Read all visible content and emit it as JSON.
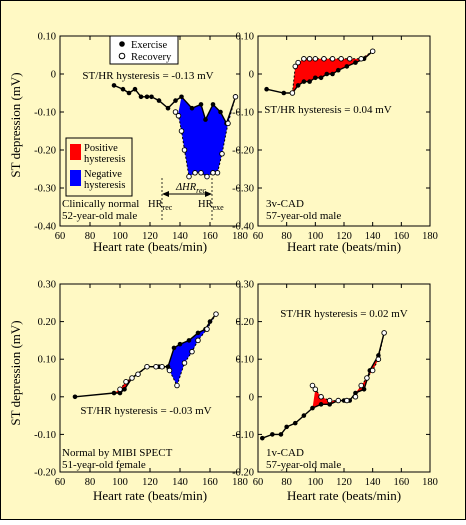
{
  "colors": {
    "background": "#fff9c4",
    "frame": "#000000",
    "positive_fill": "#ff0000",
    "negative_fill": "#0000ff"
  },
  "legend": {
    "exercise_label": "Exercise",
    "recovery_label": "Recovery",
    "positive_label_1": "Positive",
    "positive_label_2": "hysteresis",
    "negative_label_1": "Negative",
    "negative_label_2": "hysteresis"
  },
  "hr_annotation": {
    "hr_rec": "HR",
    "hr_rec_sub": "rec",
    "hr_exe": "HR",
    "hr_exe_sub": "exe",
    "delta_hr": "HR",
    "delta_hr_sub": "rec"
  },
  "chart_data": [
    {
      "type": "line",
      "panel": "top-left",
      "hysteresis_label": "ST/HR hysteresis = -0.13 mV",
      "subject_line1": "Clinically normal",
      "subject_line2": "52-year-old male",
      "xlabel": "Heart rate (beats/min)",
      "ylabel": "ST depression (mV)",
      "xlim": [
        60,
        180
      ],
      "ylim": [
        -0.4,
        0.1
      ],
      "xticks": [
        60,
        80,
        100,
        120,
        140,
        160,
        180
      ],
      "yticks": [
        -0.4,
        -0.3,
        -0.2,
        -0.1,
        0,
        0.1
      ],
      "ytick_labels": [
        "-0.40",
        "-0.30",
        "-0.20",
        "-0.10",
        "0",
        "0.10"
      ],
      "exercise": {
        "x": [
          96,
          102,
          106,
          110,
          114,
          118,
          121,
          126,
          132,
          137,
          141,
          148,
          154,
          157,
          162,
          167,
          171,
          177
        ],
        "y": [
          -0.03,
          -0.04,
          -0.05,
          -0.04,
          -0.06,
          -0.06,
          -0.06,
          -0.07,
          -0.09,
          -0.07,
          -0.06,
          -0.09,
          -0.08,
          -0.12,
          -0.08,
          -0.1,
          -0.13,
          -0.06
        ]
      },
      "recovery": {
        "x": [
          177,
          172,
          168,
          165,
          162,
          158,
          154,
          150,
          146,
          143,
          141,
          139,
          137
        ],
        "y": [
          -0.06,
          -0.13,
          -0.21,
          -0.26,
          -0.26,
          -0.27,
          -0.26,
          -0.26,
          -0.27,
          -0.2,
          -0.15,
          -0.11,
          -0.1
        ]
      },
      "fills": [
        {
          "kind": "negative",
          "x": [
            139,
            141,
            148,
            154,
            157,
            162,
            167,
            171,
            177,
            172,
            168,
            165,
            162,
            158,
            154,
            150,
            146,
            143,
            141,
            139
          ],
          "y": [
            -0.1,
            -0.06,
            -0.09,
            -0.08,
            -0.12,
            -0.08,
            -0.1,
            -0.13,
            -0.06,
            -0.13,
            -0.21,
            -0.26,
            -0.26,
            -0.27,
            -0.26,
            -0.26,
            -0.27,
            -0.2,
            -0.15,
            -0.11
          ]
        }
      ],
      "hr_markers": {
        "hr_rec": 139,
        "hr_exe": 176
      }
    },
    {
      "type": "line",
      "panel": "top-right",
      "hysteresis_label": "ST/HR hysteresis = 0.04 mV",
      "subject_line1": "3v-CAD",
      "subject_line2": "57-year-old male",
      "xlabel": "Heart rate (beats/min)",
      "ylabel": "",
      "xlim": [
        60,
        180
      ],
      "ylim": [
        -0.4,
        0.1
      ],
      "xticks": [
        60,
        80,
        100,
        120,
        140,
        160,
        180
      ],
      "yticks": [
        -0.4,
        -0.3,
        -0.2,
        -0.1,
        0,
        0.1
      ],
      "ytick_labels": [
        "-0.40",
        "-0.30",
        "-0.20",
        "-0.10",
        "0",
        "0.10"
      ],
      "exercise": {
        "x": [
          66,
          78,
          84,
          88,
          92,
          96,
          100,
          104,
          108,
          112,
          116,
          122,
          128,
          134,
          140
        ],
        "y": [
          -0.04,
          -0.05,
          -0.05,
          -0.03,
          -0.02,
          -0.02,
          -0.01,
          -0.01,
          0.0,
          0.0,
          0.01,
          0.02,
          0.03,
          0.04,
          0.06
        ]
      },
      "recovery": {
        "x": [
          140,
          132,
          124,
          118,
          112,
          106,
          100,
          96,
          92,
          88,
          86,
          84
        ],
        "y": [
          0.06,
          0.04,
          0.04,
          0.04,
          0.04,
          0.04,
          0.04,
          0.04,
          0.04,
          0.03,
          0.02,
          -0.05
        ]
      },
      "fills": [
        {
          "kind": "positive",
          "x": [
            84,
            88,
            92,
            96,
            100,
            104,
            108,
            112,
            116,
            122,
            128,
            134,
            140,
            132,
            124,
            118,
            112,
            106,
            100,
            96,
            92,
            88,
            86
          ],
          "y": [
            -0.05,
            -0.03,
            -0.02,
            -0.02,
            -0.01,
            -0.01,
            0.0,
            0.0,
            0.01,
            0.02,
            0.03,
            0.04,
            0.06,
            0.04,
            0.04,
            0.04,
            0.04,
            0.04,
            0.04,
            0.04,
            0.04,
            0.03,
            0.02
          ]
        }
      ]
    },
    {
      "type": "line",
      "panel": "bottom-left",
      "hysteresis_label": "ST/HR hysteresis = -0.03 mV",
      "subject_line1": "Normal by MIBI SPECT",
      "subject_line2": "51-year-old female",
      "xlabel": "Heart rate (beats/min)",
      "ylabel": "ST depression (mV)",
      "xlim": [
        60,
        180
      ],
      "ylim": [
        -0.2,
        0.3
      ],
      "xticks": [
        60,
        80,
        100,
        120,
        140,
        160,
        180
      ],
      "yticks": [
        -0.2,
        -0.1,
        0,
        0.1,
        0.2,
        0.3
      ],
      "ytick_labels": [
        "-0.20",
        "-0.10",
        "0",
        "0.10",
        "0.20",
        "0.30"
      ],
      "exercise": {
        "x": [
          70,
          96,
          100,
          103,
          108,
          118,
          126,
          132,
          136,
          140,
          146,
          152,
          157,
          160,
          164
        ],
        "y": [
          0.0,
          0.01,
          0.01,
          0.02,
          0.05,
          0.08,
          0.08,
          0.08,
          0.13,
          0.14,
          0.15,
          0.17,
          0.18,
          0.2,
          0.22
        ]
      },
      "recovery": {
        "x": [
          164,
          158,
          152,
          148,
          143,
          138,
          133,
          128,
          124,
          118,
          112,
          108,
          104,
          100
        ],
        "y": [
          0.22,
          0.18,
          0.15,
          0.12,
          0.09,
          0.03,
          0.07,
          0.08,
          0.08,
          0.08,
          0.06,
          0.05,
          0.04,
          0.02
        ]
      },
      "fills": [
        {
          "kind": "positive",
          "x": [
            96,
            100,
            103,
            108,
            104,
            100
          ],
          "y": [
            0.01,
            0.01,
            0.02,
            0.05,
            0.04,
            0.02
          ]
        },
        {
          "kind": "negative",
          "x": [
            132,
            136,
            140,
            146,
            152,
            157,
            160,
            164,
            158,
            152,
            148,
            143,
            138,
            133
          ],
          "y": [
            0.08,
            0.13,
            0.14,
            0.15,
            0.17,
            0.18,
            0.2,
            0.22,
            0.18,
            0.15,
            0.12,
            0.09,
            0.03,
            0.07
          ]
        }
      ]
    },
    {
      "type": "line",
      "panel": "bottom-right",
      "hysteresis_label": "ST/HR hysteresis = 0.02 mV",
      "subject_line1": "1v-CAD",
      "subject_line2": "57-year-old male",
      "xlabel": "Heart rate (beats/min)",
      "ylabel": "",
      "xlim": [
        60,
        180
      ],
      "ylim": [
        -0.2,
        0.3
      ],
      "xticks": [
        60,
        80,
        100,
        120,
        140,
        160,
        180
      ],
      "yticks": [
        -0.2,
        -0.1,
        0,
        0.1,
        0.2,
        0.3
      ],
      "ytick_labels": [
        "-0.20",
        "-0.10",
        "0",
        "0.10",
        "0.20",
        "0.30"
      ],
      "exercise": {
        "x": [
          63,
          70,
          76,
          80,
          86,
          92,
          98,
          104,
          110,
          116,
          120,
          124,
          128,
          134,
          138,
          144,
          148
        ],
        "y": [
          -0.11,
          -0.1,
          -0.1,
          -0.08,
          -0.07,
          -0.05,
          -0.03,
          -0.02,
          -0.02,
          -0.01,
          -0.01,
          -0.01,
          0.01,
          0.02,
          0.07,
          0.11,
          0.17
        ]
      },
      "recovery": {
        "x": [
          148,
          144,
          140,
          136,
          132,
          128,
          122,
          116,
          110,
          104,
          100,
          98
        ],
        "y": [
          0.17,
          0.1,
          0.07,
          0.05,
          0.03,
          0.0,
          -0.01,
          -0.01,
          -0.01,
          0.0,
          0.02,
          0.03
        ]
      },
      "fills": [
        {
          "kind": "positive",
          "x": [
            98,
            104,
            110,
            116,
            120,
            116,
            110,
            104,
            100
          ],
          "y": [
            -0.03,
            -0.02,
            -0.02,
            -0.01,
            -0.01,
            -0.01,
            -0.01,
            0.0,
            0.02
          ]
        },
        {
          "kind": "positive",
          "x": [
            128,
            134,
            138,
            144,
            148,
            144,
            140,
            136,
            132
          ],
          "y": [
            0.01,
            0.02,
            0.07,
            0.11,
            0.17,
            0.1,
            0.07,
            0.05,
            0.03
          ]
        }
      ]
    }
  ]
}
